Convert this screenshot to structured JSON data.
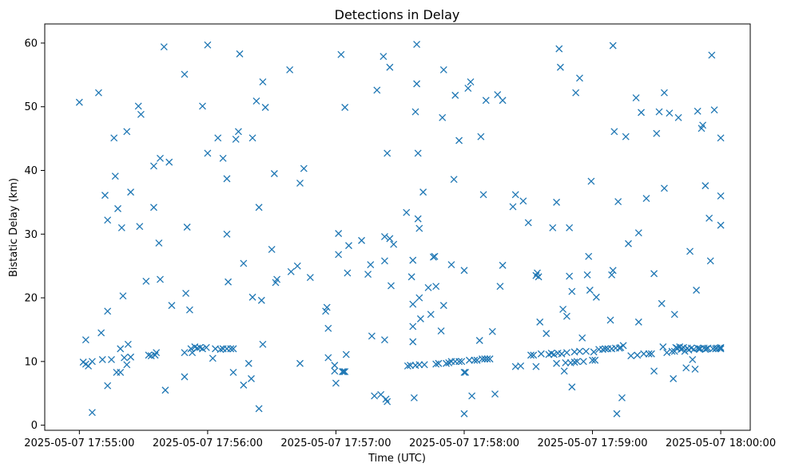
{
  "chart_data": {
    "type": "scatter",
    "title": "Detections in Delay",
    "xlabel": "Time (UTC)",
    "ylabel": "Bistatic Delay (km)",
    "marker": "x",
    "color": "#1f77b4",
    "x_unit": "minutes after 2025-05-07 17:55:00",
    "xlim": [
      -0.27,
      5.23
    ],
    "ylim": [
      -0.8,
      63
    ],
    "x_ticks": [
      {
        "value": 0,
        "label": "2025-05-07 17:55:00"
      },
      {
        "value": 1,
        "label": "2025-05-07 17:56:00"
      },
      {
        "value": 2,
        "label": "2025-05-07 17:57:00"
      },
      {
        "value": 3,
        "label": "2025-05-07 17:58:00"
      },
      {
        "value": 4,
        "label": "2025-05-07 17:59:00"
      },
      {
        "value": 5,
        "label": "2025-05-07 18:00:00"
      }
    ],
    "y_ticks": [
      {
        "value": 0,
        "label": "0"
      },
      {
        "value": 10,
        "label": "10"
      },
      {
        "value": 20,
        "label": "20"
      },
      {
        "value": 30,
        "label": "30"
      },
      {
        "value": 40,
        "label": "40"
      },
      {
        "value": 50,
        "label": "50"
      },
      {
        "value": 60,
        "label": "60"
      }
    ],
    "points": [
      [
        0.0,
        50.7
      ],
      [
        0.03,
        9.9
      ],
      [
        0.05,
        9.6
      ],
      [
        0.07,
        9.3
      ],
      [
        0.05,
        13.4
      ],
      [
        0.1,
        10.0
      ],
      [
        0.1,
        2.0
      ],
      [
        0.15,
        52.2
      ],
      [
        0.17,
        14.5
      ],
      [
        0.18,
        10.3
      ],
      [
        0.2,
        36.1
      ],
      [
        0.22,
        17.9
      ],
      [
        0.22,
        32.2
      ],
      [
        0.22,
        6.2
      ],
      [
        0.25,
        10.3
      ],
      [
        0.27,
        45.1
      ],
      [
        0.28,
        39.1
      ],
      [
        0.29,
        8.3
      ],
      [
        0.3,
        34.0
      ],
      [
        0.32,
        8.3
      ],
      [
        0.32,
        12.0
      ],
      [
        0.33,
        31.0
      ],
      [
        0.34,
        20.3
      ],
      [
        0.35,
        10.6
      ],
      [
        0.37,
        46.1
      ],
      [
        0.37,
        9.5
      ],
      [
        0.38,
        12.7
      ],
      [
        0.4,
        36.6
      ],
      [
        0.4,
        10.7
      ],
      [
        0.46,
        50.1
      ],
      [
        0.47,
        31.2
      ],
      [
        0.48,
        48.8
      ],
      [
        0.52,
        22.6
      ],
      [
        0.54,
        11.0
      ],
      [
        0.56,
        10.9
      ],
      [
        0.58,
        34.2
      ],
      [
        0.58,
        40.7
      ],
      [
        0.59,
        11.0
      ],
      [
        0.6,
        11.4
      ],
      [
        0.62,
        28.6
      ],
      [
        0.63,
        41.9
      ],
      [
        0.63,
        22.9
      ],
      [
        0.66,
        59.4
      ],
      [
        0.67,
        5.5
      ],
      [
        0.7,
        41.3
      ],
      [
        0.72,
        18.8
      ],
      [
        0.82,
        55.1
      ],
      [
        0.82,
        11.4
      ],
      [
        0.82,
        7.6
      ],
      [
        0.83,
        20.7
      ],
      [
        0.84,
        31.1
      ],
      [
        0.86,
        18.1
      ],
      [
        0.87,
        12.0
      ],
      [
        0.88,
        11.4
      ],
      [
        0.9,
        12.3
      ],
      [
        0.92,
        12.1
      ],
      [
        0.94,
        12.2
      ],
      [
        0.96,
        12.0
      ],
      [
        0.96,
        50.1
      ],
      [
        0.99,
        12.2
      ],
      [
        1.0,
        59.7
      ],
      [
        1.0,
        42.7
      ],
      [
        1.04,
        10.5
      ],
      [
        1.06,
        12.0
      ],
      [
        1.08,
        45.1
      ],
      [
        1.1,
        11.9
      ],
      [
        1.12,
        12.0
      ],
      [
        1.12,
        41.9
      ],
      [
        1.15,
        12.0
      ],
      [
        1.15,
        38.7
      ],
      [
        1.15,
        30.0
      ],
      [
        1.16,
        22.5
      ],
      [
        1.18,
        12.0
      ],
      [
        1.2,
        12.0
      ],
      [
        1.2,
        8.3
      ],
      [
        1.22,
        44.9
      ],
      [
        1.24,
        46.1
      ],
      [
        1.25,
        58.3
      ],
      [
        1.28,
        25.4
      ],
      [
        1.28,
        6.3
      ],
      [
        1.32,
        9.7
      ],
      [
        1.34,
        7.3
      ],
      [
        1.35,
        45.1
      ],
      [
        1.35,
        20.1
      ],
      [
        1.38,
        50.9
      ],
      [
        1.4,
        34.2
      ],
      [
        1.4,
        2.6
      ],
      [
        1.42,
        19.6
      ],
      [
        1.43,
        12.7
      ],
      [
        1.43,
        53.9
      ],
      [
        1.45,
        49.9
      ],
      [
        1.5,
        27.6
      ],
      [
        1.52,
        39.5
      ],
      [
        1.53,
        22.4
      ],
      [
        1.54,
        22.9
      ],
      [
        1.64,
        55.8
      ],
      [
        1.65,
        24.1
      ],
      [
        1.7,
        25.0
      ],
      [
        1.72,
        38.0
      ],
      [
        1.72,
        9.7
      ],
      [
        1.75,
        40.3
      ],
      [
        1.8,
        23.2
      ],
      [
        1.92,
        17.9
      ],
      [
        1.93,
        18.5
      ],
      [
        1.94,
        15.2
      ],
      [
        1.94,
        10.6
      ],
      [
        1.99,
        9.4
      ],
      [
        1.99,
        8.5
      ],
      [
        2.0,
        6.6
      ],
      [
        2.02,
        26.8
      ],
      [
        2.02,
        30.1
      ],
      [
        2.04,
        58.2
      ],
      [
        2.05,
        8.4
      ],
      [
        2.06,
        8.4
      ],
      [
        2.07,
        8.4
      ],
      [
        2.07,
        49.9
      ],
      [
        2.08,
        11.1
      ],
      [
        2.09,
        23.9
      ],
      [
        2.1,
        28.2
      ],
      [
        2.2,
        29.0
      ],
      [
        2.25,
        23.7
      ],
      [
        2.27,
        25.2
      ],
      [
        2.28,
        14.0
      ],
      [
        2.3,
        4.6
      ],
      [
        2.32,
        52.6
      ],
      [
        2.35,
        4.8
      ],
      [
        2.37,
        57.9
      ],
      [
        2.38,
        25.8
      ],
      [
        2.38,
        29.6
      ],
      [
        2.38,
        13.4
      ],
      [
        2.39,
        4.1
      ],
      [
        2.4,
        42.7
      ],
      [
        2.4,
        3.7
      ],
      [
        2.42,
        29.3
      ],
      [
        2.42,
        56.2
      ],
      [
        2.43,
        21.9
      ],
      [
        2.45,
        28.4
      ],
      [
        2.55,
        33.4
      ],
      [
        2.56,
        9.3
      ],
      [
        2.58,
        9.4
      ],
      [
        2.59,
        23.3
      ],
      [
        2.6,
        25.9
      ],
      [
        2.6,
        15.5
      ],
      [
        2.6,
        13.1
      ],
      [
        2.6,
        19.0
      ],
      [
        2.61,
        4.3
      ],
      [
        2.62,
        49.2
      ],
      [
        2.62,
        9.4
      ],
      [
        2.63,
        53.6
      ],
      [
        2.63,
        59.8
      ],
      [
        2.64,
        42.7
      ],
      [
        2.64,
        32.4
      ],
      [
        2.65,
        30.9
      ],
      [
        2.65,
        9.5
      ],
      [
        2.65,
        20.0
      ],
      [
        2.66,
        16.7
      ],
      [
        2.68,
        36.6
      ],
      [
        2.69,
        9.5
      ],
      [
        2.72,
        21.6
      ],
      [
        2.74,
        17.4
      ],
      [
        2.76,
        26.4
      ],
      [
        2.77,
        26.5
      ],
      [
        2.78,
        21.8
      ],
      [
        2.78,
        9.6
      ],
      [
        2.8,
        9.7
      ],
      [
        2.82,
        14.8
      ],
      [
        2.83,
        48.3
      ],
      [
        2.84,
        18.8
      ],
      [
        2.84,
        55.8
      ],
      [
        2.86,
        9.7
      ],
      [
        2.88,
        9.8
      ],
      [
        2.9,
        10.0
      ],
      [
        2.9,
        25.2
      ],
      [
        2.92,
        38.6
      ],
      [
        2.93,
        10.0
      ],
      [
        2.93,
        51.8
      ],
      [
        2.96,
        44.7
      ],
      [
        2.96,
        10.0
      ],
      [
        2.98,
        10.0
      ],
      [
        3.0,
        24.3
      ],
      [
        3.0,
        8.3
      ],
      [
        3.0,
        1.8
      ],
      [
        3.01,
        8.3
      ],
      [
        3.03,
        52.9
      ],
      [
        3.04,
        10.2
      ],
      [
        3.05,
        53.9
      ],
      [
        3.06,
        4.6
      ],
      [
        3.08,
        10.2
      ],
      [
        3.1,
        10.2
      ],
      [
        3.12,
        13.3
      ],
      [
        3.13,
        45.3
      ],
      [
        3.14,
        10.4
      ],
      [
        3.15,
        36.2
      ],
      [
        3.16,
        10.4
      ],
      [
        3.17,
        51.0
      ],
      [
        3.18,
        10.4
      ],
      [
        3.2,
        10.4
      ],
      [
        3.22,
        14.7
      ],
      [
        3.24,
        4.9
      ],
      [
        3.26,
        51.9
      ],
      [
        3.28,
        21.8
      ],
      [
        3.3,
        25.1
      ],
      [
        3.3,
        51.0
      ],
      [
        3.38,
        34.3
      ],
      [
        3.4,
        36.2
      ],
      [
        3.4,
        9.2
      ],
      [
        3.44,
        9.3
      ],
      [
        3.46,
        35.2
      ],
      [
        3.5,
        31.8
      ],
      [
        3.52,
        11.0
      ],
      [
        3.54,
        11.0
      ],
      [
        3.56,
        9.2
      ],
      [
        3.56,
        23.5
      ],
      [
        3.57,
        23.9
      ],
      [
        3.58,
        23.3
      ],
      [
        3.59,
        16.2
      ],
      [
        3.6,
        11.2
      ],
      [
        3.64,
        14.4
      ],
      [
        3.66,
        11.1
      ],
      [
        3.68,
        11.3
      ],
      [
        3.69,
        31.0
      ],
      [
        3.7,
        11.1
      ],
      [
        3.72,
        9.7
      ],
      [
        3.72,
        35.0
      ],
      [
        3.73,
        11.3
      ],
      [
        3.74,
        59.1
      ],
      [
        3.75,
        56.2
      ],
      [
        3.76,
        11.2
      ],
      [
        3.77,
        18.2
      ],
      [
        3.78,
        8.5
      ],
      [
        3.79,
        9.8
      ],
      [
        3.8,
        17.1
      ],
      [
        3.8,
        11.4
      ],
      [
        3.82,
        31.0
      ],
      [
        3.82,
        23.4
      ],
      [
        3.83,
        9.8
      ],
      [
        3.84,
        21.0
      ],
      [
        3.84,
        6.0
      ],
      [
        3.86,
        9.9
      ],
      [
        3.86,
        11.5
      ],
      [
        3.87,
        52.2
      ],
      [
        3.88,
        10.0
      ],
      [
        3.9,
        54.5
      ],
      [
        3.9,
        11.6
      ],
      [
        3.92,
        13.7
      ],
      [
        3.93,
        10.0
      ],
      [
        3.95,
        11.6
      ],
      [
        3.96,
        23.6
      ],
      [
        3.97,
        26.5
      ],
      [
        3.98,
        21.2
      ],
      [
        3.99,
        38.3
      ],
      [
        4.0,
        10.2
      ],
      [
        4.01,
        11.5
      ],
      [
        4.02,
        10.2
      ],
      [
        4.03,
        20.1
      ],
      [
        4.05,
        11.9
      ],
      [
        4.08,
        11.9
      ],
      [
        4.1,
        12.0
      ],
      [
        4.12,
        12.0
      ],
      [
        4.14,
        16.5
      ],
      [
        4.15,
        23.6
      ],
      [
        4.15,
        12.0
      ],
      [
        4.16,
        24.3
      ],
      [
        4.16,
        59.6
      ],
      [
        4.17,
        46.1
      ],
      [
        4.18,
        12.1
      ],
      [
        4.19,
        1.8
      ],
      [
        4.2,
        35.1
      ],
      [
        4.21,
        12.1
      ],
      [
        4.22,
        12.2
      ],
      [
        4.23,
        4.3
      ],
      [
        4.24,
        12.5
      ],
      [
        4.26,
        45.3
      ],
      [
        4.28,
        28.5
      ],
      [
        4.3,
        10.9
      ],
      [
        4.34,
        51.4
      ],
      [
        4.35,
        11.0
      ],
      [
        4.36,
        16.2
      ],
      [
        4.36,
        30.2
      ],
      [
        4.38,
        49.1
      ],
      [
        4.4,
        11.2
      ],
      [
        4.42,
        35.6
      ],
      [
        4.44,
        11.2
      ],
      [
        4.46,
        11.2
      ],
      [
        4.48,
        8.5
      ],
      [
        4.48,
        23.8
      ],
      [
        4.5,
        45.8
      ],
      [
        4.52,
        49.2
      ],
      [
        4.54,
        19.1
      ],
      [
        4.55,
        12.3
      ],
      [
        4.56,
        52.2
      ],
      [
        4.56,
        37.2
      ],
      [
        4.58,
        11.4
      ],
      [
        4.6,
        49.0
      ],
      [
        4.62,
        11.6
      ],
      [
        4.63,
        7.3
      ],
      [
        4.64,
        11.6
      ],
      [
        4.64,
        17.4
      ],
      [
        4.65,
        12.2
      ],
      [
        4.66,
        12.1
      ],
      [
        4.67,
        48.3
      ],
      [
        4.68,
        12.3
      ],
      [
        4.69,
        11.9
      ],
      [
        4.7,
        12.0
      ],
      [
        4.71,
        12.2
      ],
      [
        4.72,
        11.6
      ],
      [
        4.73,
        9.0
      ],
      [
        4.74,
        12.1
      ],
      [
        4.75,
        11.8
      ],
      [
        4.76,
        27.3
      ],
      [
        4.77,
        12.1
      ],
      [
        4.78,
        10.3
      ],
      [
        4.79,
        11.9
      ],
      [
        4.8,
        8.8
      ],
      [
        4.81,
        21.2
      ],
      [
        4.82,
        12.1
      ],
      [
        4.82,
        49.3
      ],
      [
        4.83,
        12.0
      ],
      [
        4.84,
        12.0
      ],
      [
        4.85,
        46.6
      ],
      [
        4.86,
        47.1
      ],
      [
        4.87,
        12.1
      ],
      [
        4.88,
        37.6
      ],
      [
        4.88,
        11.9
      ],
      [
        4.89,
        12.0
      ],
      [
        4.9,
        12.1
      ],
      [
        4.91,
        32.5
      ],
      [
        4.92,
        25.8
      ],
      [
        4.93,
        58.1
      ],
      [
        4.94,
        12.0
      ],
      [
        4.95,
        49.5
      ],
      [
        4.96,
        12.0
      ],
      [
        4.97,
        12.1
      ],
      [
        4.99,
        12.1
      ],
      [
        5.0,
        12.0
      ],
      [
        5.0,
        12.2
      ],
      [
        5.0,
        45.1
      ],
      [
        5.0,
        36.0
      ],
      [
        5.0,
        31.4
      ]
    ]
  }
}
